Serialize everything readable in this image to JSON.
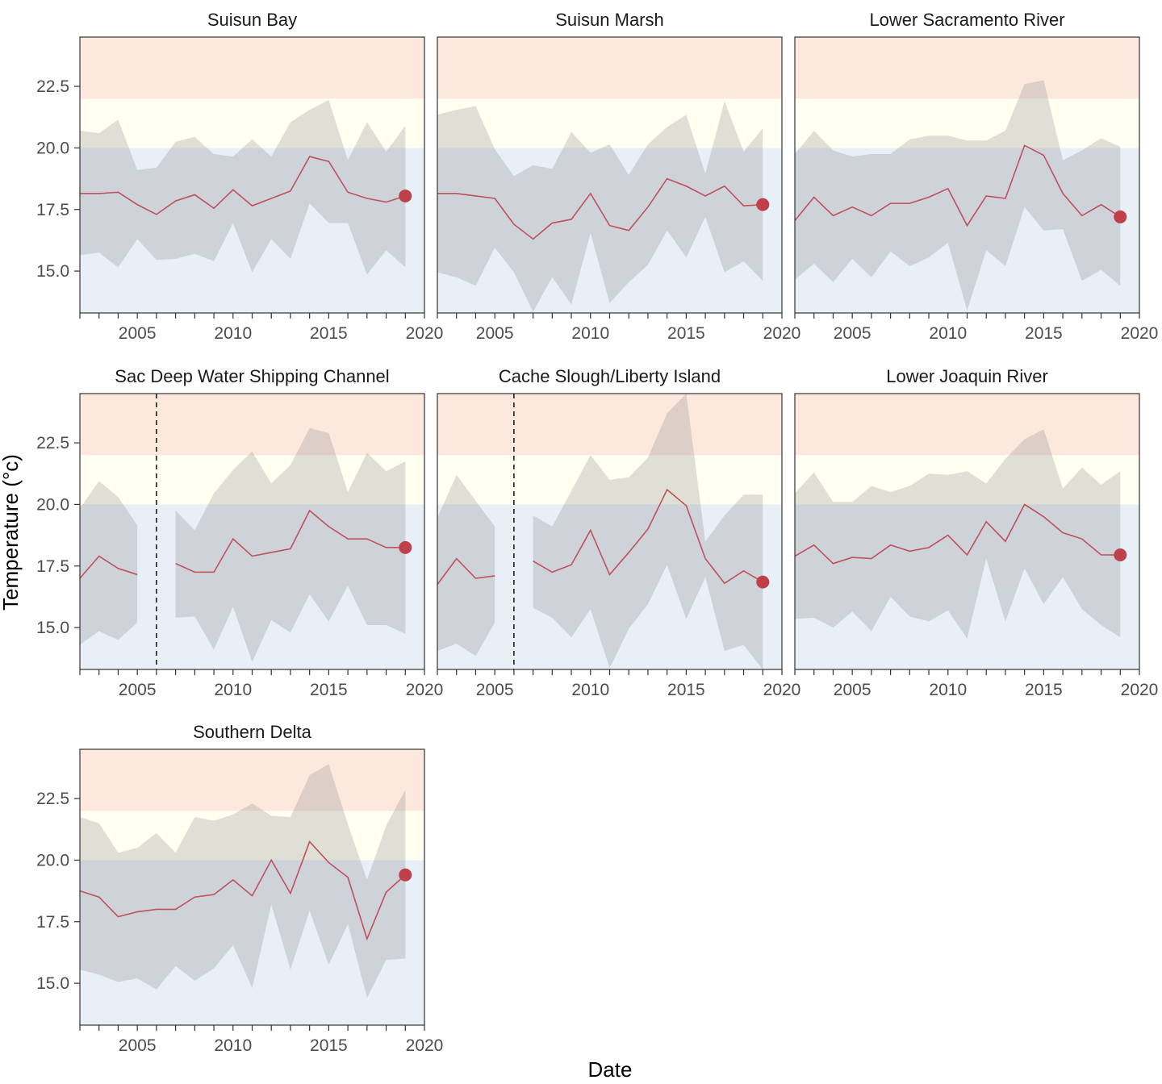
{
  "chart_data": {
    "type": "line",
    "xlabel": "Date",
    "ylabel": "Temperature (°c)",
    "xlim": [
      2002,
      2020
    ],
    "ylim": [
      13.3,
      24.5
    ],
    "x_ticks": [
      2005,
      2010,
      2015,
      2020
    ],
    "y_ticks": [
      15.0,
      17.5,
      20.0,
      22.5
    ],
    "threshold_bands": [
      {
        "from": 13.3,
        "to": 20.0,
        "color": "#e8eff7"
      },
      {
        "from": 20.0,
        "to": 22.0,
        "color": "#fffff2"
      },
      {
        "from": 22.0,
        "to": 24.5,
        "color": "#fde8de"
      }
    ],
    "colors": {
      "line": "#c0505a",
      "band": "#8c8c8c",
      "point": "#c0404a"
    },
    "years": [
      2002,
      2003,
      2004,
      2005,
      2006,
      2007,
      2008,
      2009,
      2010,
      2011,
      2012,
      2013,
      2014,
      2015,
      2016,
      2017,
      2018,
      2019
    ],
    "panels": [
      {
        "title": "Suisun Bay",
        "mean": [
          18.15,
          18.15,
          18.2,
          17.7,
          17.3,
          17.85,
          18.1,
          17.55,
          18.3,
          17.65,
          17.95,
          18.25,
          19.65,
          19.45,
          18.2,
          17.95,
          17.8,
          18.05
        ],
        "lower": [
          15.65,
          15.75,
          15.15,
          16.3,
          15.45,
          15.5,
          15.7,
          15.4,
          16.95,
          14.95,
          16.3,
          15.5,
          17.75,
          16.95,
          16.95,
          14.85,
          15.85,
          15.15
        ],
        "upper": [
          20.7,
          20.6,
          21.15,
          19.1,
          19.2,
          20.25,
          20.45,
          19.75,
          19.65,
          20.35,
          19.65,
          21.05,
          21.55,
          21.95,
          19.5,
          21.05,
          19.85,
          20.9
        ],
        "last": 18.05,
        "vline": null
      },
      {
        "title": "Suisun Marsh",
        "mean": [
          18.15,
          18.15,
          18.05,
          17.95,
          16.9,
          16.3,
          16.95,
          17.1,
          18.15,
          16.85,
          16.65,
          17.6,
          18.75,
          18.45,
          18.05,
          18.45,
          17.65,
          17.7
        ],
        "lower": [
          14.95,
          14.75,
          14.4,
          15.95,
          14.95,
          13.35,
          14.75,
          13.65,
          16.55,
          13.7,
          14.55,
          15.25,
          16.65,
          15.55,
          17.2,
          14.95,
          15.4,
          14.6
        ],
        "upper": [
          21.35,
          21.55,
          21.7,
          19.95,
          18.85,
          19.3,
          19.15,
          20.65,
          19.8,
          20.15,
          18.9,
          20.15,
          20.85,
          21.35,
          18.95,
          21.9,
          19.85,
          20.8
        ],
        "last": 17.7,
        "vline": null
      },
      {
        "title": "Lower Sacramento River",
        "mean": [
          17.05,
          18.0,
          17.25,
          17.6,
          17.25,
          17.75,
          17.75,
          18.0,
          18.35,
          16.85,
          18.05,
          17.95,
          20.1,
          19.7,
          18.15,
          17.25,
          17.7,
          17.2
        ],
        "lower": [
          14.65,
          15.3,
          14.55,
          15.5,
          14.75,
          15.8,
          15.2,
          15.55,
          16.15,
          13.4,
          15.85,
          15.2,
          17.6,
          16.65,
          16.7,
          14.6,
          15.05,
          14.4
        ],
        "upper": [
          19.75,
          20.7,
          19.9,
          19.65,
          19.75,
          19.75,
          20.35,
          20.5,
          20.5,
          20.3,
          20.3,
          20.7,
          22.6,
          22.75,
          19.5,
          19.9,
          20.4,
          20.05
        ],
        "last": 17.2,
        "vline": null
      },
      {
        "title": "Sac Deep Water Shipping Channel",
        "mean": [
          17.0,
          17.9,
          17.4,
          17.15,
          null,
          17.6,
          17.25,
          17.25,
          18.6,
          17.9,
          18.05,
          18.2,
          19.75,
          19.1,
          18.6,
          18.6,
          18.25,
          18.25
        ],
        "lower": [
          14.3,
          14.85,
          14.5,
          15.2,
          null,
          15.4,
          15.45,
          14.1,
          15.85,
          13.6,
          15.3,
          14.8,
          16.35,
          15.25,
          16.7,
          15.1,
          15.1,
          14.75
        ],
        "upper": [
          19.85,
          20.95,
          20.3,
          19.15,
          null,
          19.75,
          18.95,
          20.45,
          21.4,
          22.15,
          20.85,
          21.6,
          23.1,
          22.9,
          20.5,
          22.1,
          21.35,
          21.75
        ],
        "last": 18.25,
        "vline": 2006
      },
      {
        "title": "Cache Slough/Liberty Island",
        "mean": [
          16.75,
          17.8,
          17.0,
          17.1,
          null,
          17.7,
          17.25,
          17.55,
          18.95,
          17.15,
          18.05,
          19.0,
          20.6,
          19.95,
          17.8,
          16.8,
          17.3,
          16.85
        ],
        "lower": [
          14.05,
          14.35,
          13.85,
          15.2,
          null,
          15.8,
          15.4,
          14.6,
          15.75,
          13.35,
          14.95,
          15.95,
          17.55,
          15.35,
          17.05,
          14.05,
          14.3,
          13.3
        ],
        "upper": [
          19.45,
          21.2,
          20.15,
          19.1,
          null,
          19.55,
          19.1,
          20.55,
          22.0,
          21.0,
          21.1,
          21.9,
          23.7,
          24.5,
          18.5,
          19.55,
          20.4,
          20.4
        ],
        "last": 16.85,
        "vline": 2006
      },
      {
        "title": "Lower Joaquin River",
        "mean": [
          17.9,
          18.35,
          17.6,
          17.85,
          17.8,
          18.35,
          18.1,
          18.25,
          18.75,
          17.95,
          19.3,
          18.5,
          20.0,
          19.5,
          18.85,
          18.6,
          17.95,
          17.95
        ],
        "lower": [
          15.35,
          15.4,
          15.0,
          15.65,
          14.85,
          16.25,
          15.45,
          15.25,
          15.7,
          14.55,
          17.8,
          15.25,
          17.4,
          15.95,
          17.05,
          15.75,
          15.1,
          14.6
        ],
        "upper": [
          20.45,
          21.3,
          20.1,
          20.1,
          20.75,
          20.5,
          20.75,
          21.25,
          21.2,
          21.35,
          20.85,
          21.85,
          22.65,
          23.05,
          20.65,
          21.5,
          20.8,
          21.35
        ],
        "last": 17.95,
        "vline": null
      },
      {
        "title": "Southern Delta",
        "mean": [
          18.75,
          18.5,
          17.7,
          17.9,
          18.0,
          18.0,
          18.5,
          18.6,
          19.2,
          18.55,
          20.0,
          18.65,
          20.75,
          19.9,
          19.3,
          16.8,
          18.7,
          19.4
        ],
        "lower": [
          15.55,
          15.35,
          15.05,
          15.2,
          14.75,
          15.7,
          15.1,
          15.6,
          16.55,
          14.8,
          18.2,
          15.55,
          17.95,
          15.75,
          17.4,
          14.4,
          15.95,
          16.0
        ],
        "upper": [
          21.75,
          21.5,
          20.3,
          20.5,
          21.1,
          20.3,
          21.75,
          21.6,
          21.85,
          22.3,
          21.8,
          21.75,
          23.45,
          23.9,
          21.45,
          19.2,
          21.4,
          22.85
        ],
        "last": 19.4,
        "vline": null
      }
    ]
  }
}
